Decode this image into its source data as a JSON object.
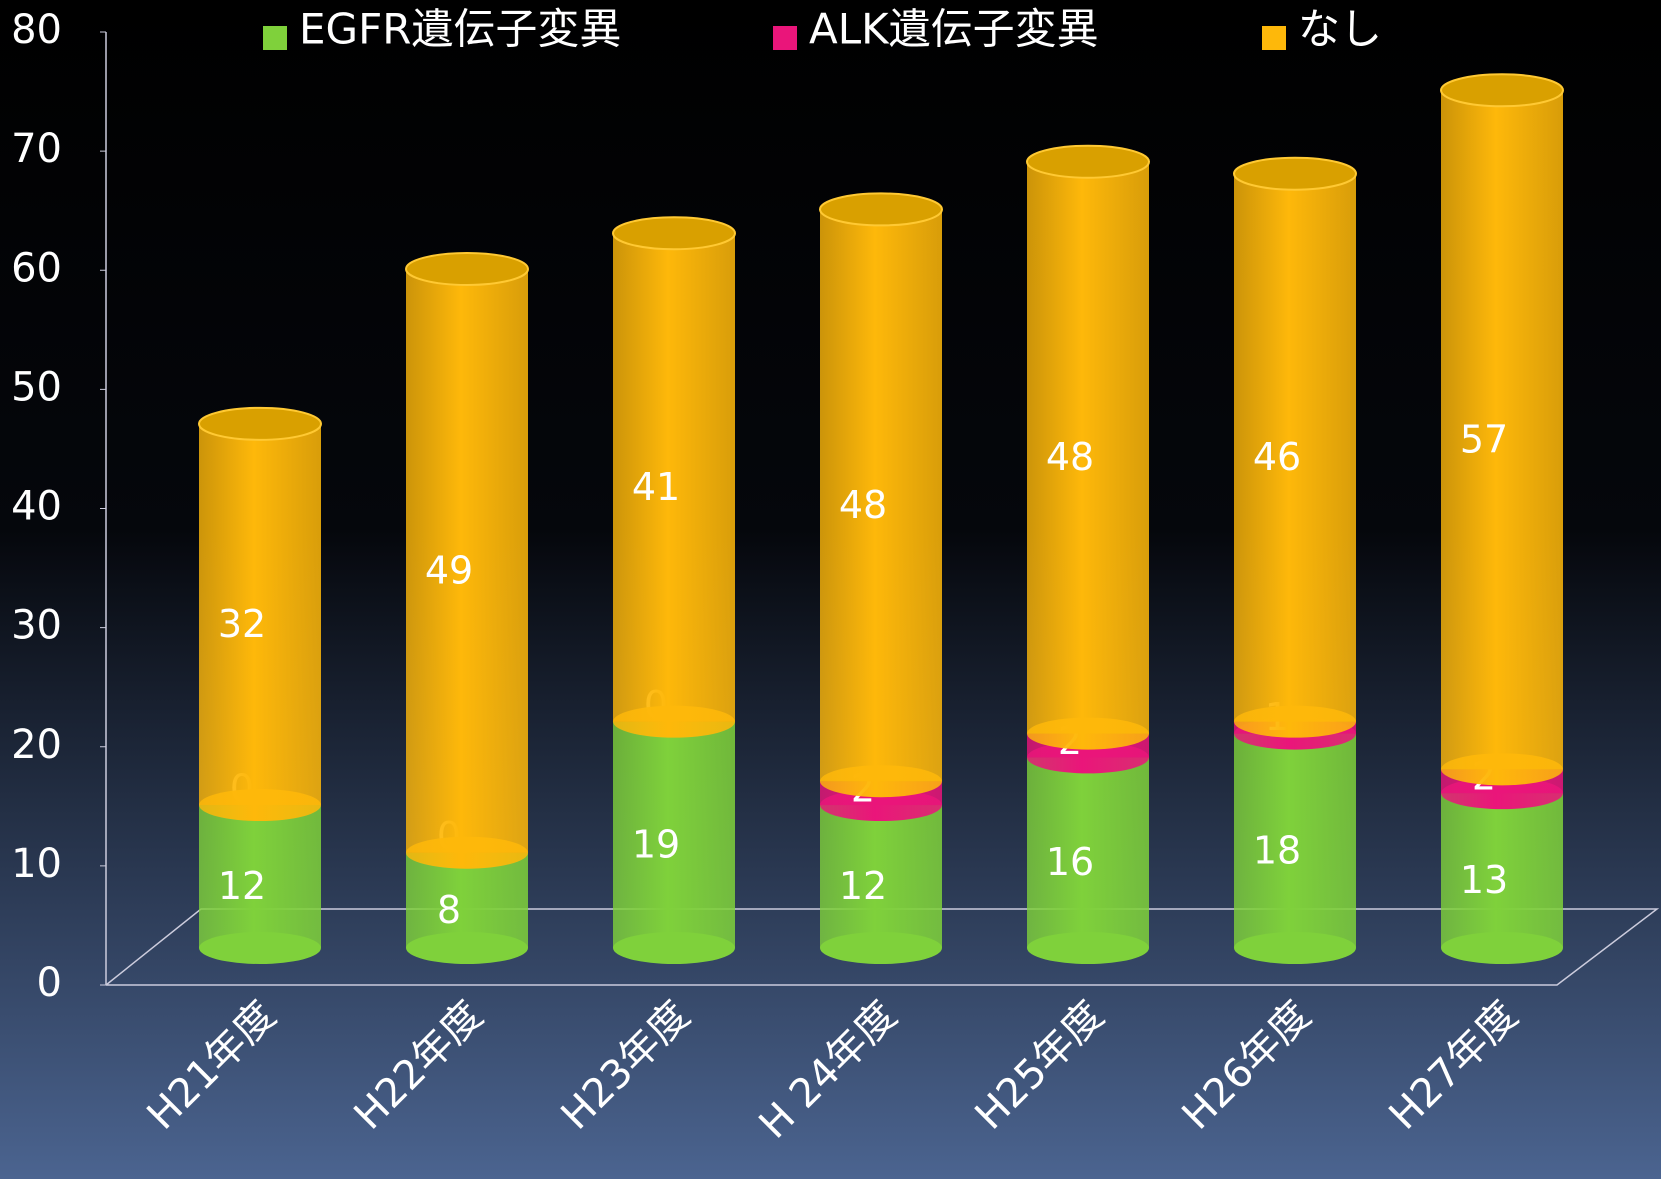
{
  "chart_data": {
    "type": "bar",
    "stacked": true,
    "categories": [
      "H21年度",
      "H22年度",
      "H23年度",
      "H 24年度",
      "H25年度",
      "H26年度",
      "H27年度"
    ],
    "series": [
      {
        "name": "EGFR遺伝子変異",
        "color": "#7fd13b",
        "values": [
          12,
          8,
          19,
          12,
          16,
          18,
          13
        ]
      },
      {
        "name": "ALK遺伝子変異",
        "color": "#ea157a",
        "values": [
          0,
          0,
          0,
          2,
          2,
          1,
          2
        ]
      },
      {
        "name": "なし",
        "color": "#feb80a",
        "values": [
          32,
          49,
          41,
          48,
          48,
          46,
          57
        ]
      }
    ],
    "ylim": [
      0,
      80
    ],
    "yticks": [
      0,
      10,
      20,
      30,
      40,
      50,
      60,
      70,
      80
    ],
    "grid": false,
    "legend": "top"
  }
}
